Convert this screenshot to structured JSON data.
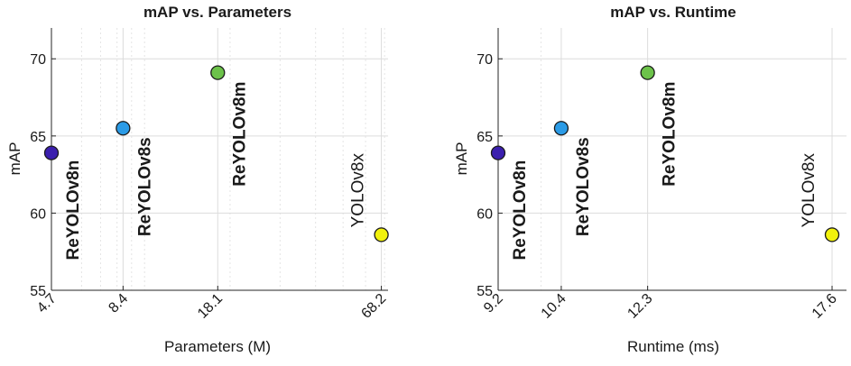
{
  "chart_data": [
    {
      "type": "scatter",
      "title": "mAP vs. Parameters",
      "xlabel": "Parameters (M)",
      "ylabel": "mAP",
      "xscale": "log",
      "xlim": [
        4.7,
        72
      ],
      "ylim": [
        55,
        72
      ],
      "xticks": [
        4.7,
        8.4,
        18.1,
        68.2
      ],
      "xtick_labels": [
        "4.7",
        "8.4",
        "18.1",
        "68.2"
      ],
      "xminor": [
        6,
        7,
        8,
        9,
        10,
        20,
        30,
        40,
        50,
        60,
        70
      ],
      "yticks": [
        55,
        60,
        65,
        70
      ],
      "ytick_labels": [
        "55",
        "60",
        "65",
        "70"
      ],
      "grid": true,
      "points": [
        {
          "label": "ReYOLOv8n",
          "x": 4.7,
          "y": 63.9,
          "color": "#3b1fae",
          "bold": true
        },
        {
          "label": "ReYOLOv8s",
          "x": 8.4,
          "y": 65.5,
          "color": "#2b9be6",
          "bold": true
        },
        {
          "label": "ReYOLOv8m",
          "x": 18.1,
          "y": 69.1,
          "color": "#6cc24a",
          "bold": true
        },
        {
          "label": "YOLOv8x",
          "x": 68.2,
          "y": 58.6,
          "color": "#f2f20c",
          "bold": false
        }
      ]
    },
    {
      "type": "scatter",
      "title": "mAP vs. Runtime",
      "xlabel": "Runtime (ms)",
      "ylabel": "mAP",
      "xscale": "log",
      "xlim": [
        9.2,
        18.1
      ],
      "ylim": [
        55,
        72
      ],
      "xticks": [
        9.2,
        10.4,
        12.3,
        17.6
      ],
      "xtick_labels": [
        "9.2",
        "10.4",
        "12.3",
        "17.6"
      ],
      "xminor": [
        10
      ],
      "yticks": [
        55,
        60,
        65,
        70
      ],
      "ytick_labels": [
        "55",
        "60",
        "65",
        "70"
      ],
      "grid": true,
      "points": [
        {
          "label": "ReYOLOv8n",
          "x": 9.2,
          "y": 63.9,
          "color": "#3b1fae",
          "bold": true
        },
        {
          "label": "ReYOLOv8s",
          "x": 10.4,
          "y": 65.5,
          "color": "#2b9be6",
          "bold": true
        },
        {
          "label": "ReYOLOv8m",
          "x": 12.3,
          "y": 69.1,
          "color": "#6cc24a",
          "bold": true
        },
        {
          "label": "YOLOv8x",
          "x": 17.6,
          "y": 58.6,
          "color": "#f2f20c",
          "bold": false
        }
      ]
    }
  ]
}
